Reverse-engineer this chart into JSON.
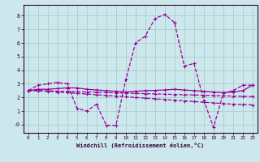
{
  "xlabel": "Windchill (Refroidissement éolien,°C)",
  "background_color": "#cce8ec",
  "grid_color": "#aacccc",
  "line_color": "#990099",
  "xlim": [
    -0.5,
    23.5
  ],
  "ylim": [
    -0.6,
    8.8
  ],
  "yticks": [
    0,
    1,
    2,
    3,
    4,
    5,
    6,
    7,
    8
  ],
  "ytick_labels": [
    "-0",
    "1",
    "2",
    "3",
    "4",
    "5",
    "6",
    "7",
    "8"
  ],
  "xticks": [
    0,
    1,
    2,
    3,
    4,
    5,
    6,
    7,
    8,
    9,
    10,
    11,
    12,
    13,
    14,
    15,
    16,
    17,
    18,
    19,
    20,
    21,
    22,
    23
  ],
  "series": [
    {
      "y": [
        2.5,
        2.9,
        3.0,
        3.1,
        3.0,
        1.2,
        1.0,
        1.5,
        -0.05,
        -0.05,
        3.3,
        6.0,
        6.5,
        7.8,
        8.1,
        7.5,
        4.3,
        4.5,
        1.8,
        -0.2,
        2.3,
        2.5,
        2.9,
        2.9
      ],
      "linestyle": "--",
      "linewidth": 0.9
    },
    {
      "y": [
        2.5,
        2.6,
        2.6,
        2.65,
        2.7,
        2.7,
        2.6,
        2.55,
        2.5,
        2.45,
        2.4,
        2.45,
        2.5,
        2.52,
        2.55,
        2.6,
        2.55,
        2.5,
        2.45,
        2.4,
        2.35,
        2.4,
        2.5,
        2.9
      ],
      "linestyle": "-",
      "linewidth": 0.9
    },
    {
      "y": [
        2.5,
        2.5,
        2.45,
        2.4,
        2.35,
        2.3,
        2.25,
        2.2,
        2.15,
        2.1,
        2.05,
        2.0,
        1.95,
        1.9,
        1.85,
        1.8,
        1.75,
        1.7,
        1.65,
        1.6,
        1.55,
        1.5,
        1.48,
        1.45
      ],
      "linestyle": "--",
      "linewidth": 0.9
    },
    {
      "y": [
        2.5,
        2.5,
        2.48,
        2.46,
        2.44,
        2.42,
        2.4,
        2.38,
        2.36,
        2.34,
        2.32,
        2.3,
        2.28,
        2.26,
        2.24,
        2.22,
        2.2,
        2.18,
        2.16,
        2.14,
        2.12,
        2.1,
        2.08,
        2.06
      ],
      "linestyle": "--",
      "linewidth": 0.9
    }
  ]
}
